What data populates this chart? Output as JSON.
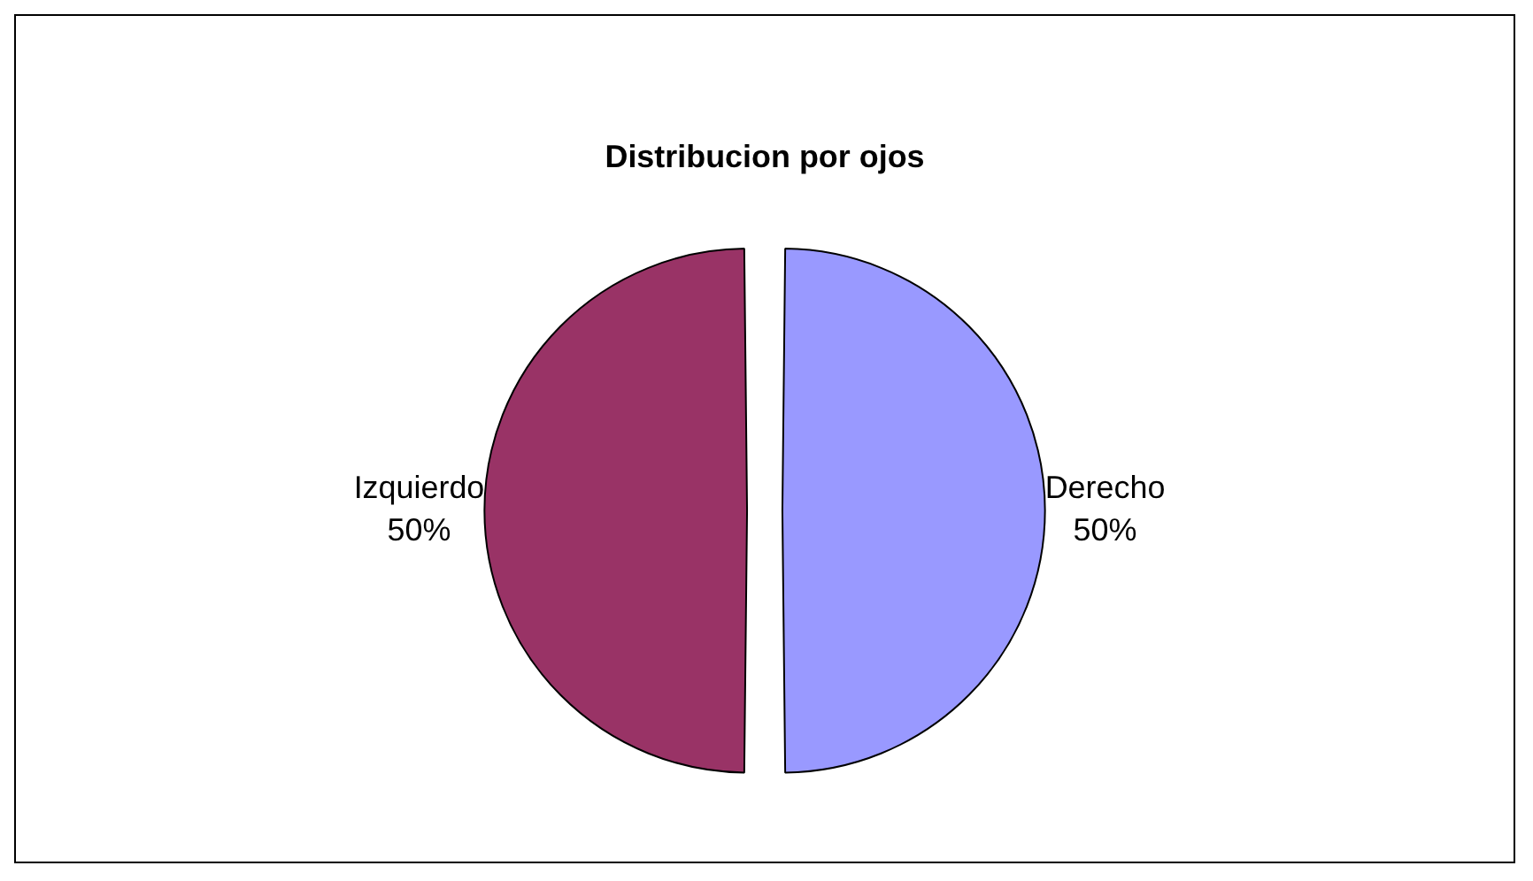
{
  "chart_data": {
    "type": "pie",
    "title": "Distribucion por ojos",
    "categories": [
      "Derecho",
      "Izquierdo"
    ],
    "values": [
      50,
      50
    ],
    "colors": [
      "#9999ff",
      "#993366"
    ],
    "value_labels": [
      "50%",
      "50%"
    ]
  }
}
